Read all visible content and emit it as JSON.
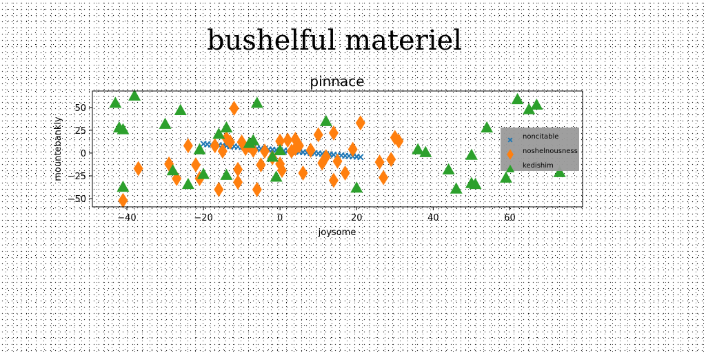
{
  "figure": {
    "suptitle": "bushelful materiel"
  },
  "chart_data": {
    "type": "scatter",
    "title": "pinnace",
    "xlabel": "joysome",
    "ylabel": "mountebankly",
    "xlim": [
      -49,
      79
    ],
    "ylim": [
      -59,
      68
    ],
    "xticks": [
      -40,
      -20,
      0,
      20,
      40,
      60
    ],
    "yticks": [
      -50,
      -25,
      0,
      25,
      50
    ],
    "tick_labels_x": [
      "−40",
      "−20",
      "0",
      "20",
      "40",
      "60"
    ],
    "tick_labels_y": [
      "−50",
      "−25",
      "0",
      "25",
      "50"
    ],
    "grid": false,
    "legend": {
      "placement": "right",
      "background": "#9a9a9a"
    },
    "series": [
      {
        "name": "noncitable",
        "marker": "x",
        "color": "#1f77b4",
        "points": [
          [
            -20,
            10
          ],
          [
            -19,
            9.6
          ],
          [
            -18,
            9.3
          ],
          [
            -17,
            8.9
          ],
          [
            -16,
            8.6
          ],
          [
            -15,
            8.2
          ],
          [
            -14,
            7.9
          ],
          [
            -13,
            7.5
          ],
          [
            -12,
            7.2
          ],
          [
            -11,
            6.8
          ],
          [
            -10,
            6.5
          ],
          [
            -9,
            6.1
          ],
          [
            -8,
            5.8
          ],
          [
            -7,
            5.4
          ],
          [
            -6,
            5.1
          ],
          [
            -5,
            4.7
          ],
          [
            -4,
            4.4
          ],
          [
            -3,
            4.0
          ],
          [
            -2,
            3.7
          ],
          [
            -1,
            3.3
          ],
          [
            0,
            3.0
          ],
          [
            1,
            2.6
          ],
          [
            2,
            2.3
          ],
          [
            3,
            1.9
          ],
          [
            4,
            1.6
          ],
          [
            5,
            1.2
          ],
          [
            6,
            0.9
          ],
          [
            7,
            0.5
          ],
          [
            8,
            0.2
          ],
          [
            9,
            -0.2
          ],
          [
            10,
            -0.5
          ],
          [
            11,
            -0.9
          ],
          [
            12,
            -1.2
          ],
          [
            13,
            -1.6
          ],
          [
            14,
            -1.9
          ],
          [
            15,
            -2.3
          ],
          [
            16,
            -2.6
          ],
          [
            17,
            -3.0
          ],
          [
            18,
            -3.3
          ],
          [
            19,
            -3.7
          ],
          [
            20,
            -4.0
          ],
          [
            21,
            -4.4
          ]
        ]
      },
      {
        "name": "noshelnousness",
        "marker": "d",
        "color": "#ff7f0e",
        "points": [
          [
            -41,
            -52
          ],
          [
            -37,
            -17
          ],
          [
            -29,
            -12
          ],
          [
            -27,
            -28
          ],
          [
            -24,
            8
          ],
          [
            -22,
            -13
          ],
          [
            -21,
            -28
          ],
          [
            -17,
            8
          ],
          [
            -16,
            -40
          ],
          [
            -15,
            2
          ],
          [
            -14,
            16
          ],
          [
            -13,
            12
          ],
          [
            -12,
            49
          ],
          [
            -11,
            -18
          ],
          [
            -11,
            -32
          ],
          [
            -10,
            12
          ],
          [
            -9,
            5
          ],
          [
            -8,
            8
          ],
          [
            -7,
            3
          ],
          [
            -6,
            -40
          ],
          [
            -5,
            -13
          ],
          [
            -4,
            2
          ],
          [
            -2,
            -5
          ],
          [
            0,
            13
          ],
          [
            0,
            -12
          ],
          [
            0.5,
            -19
          ],
          [
            2,
            14
          ],
          [
            3,
            2
          ],
          [
            4,
            5
          ],
          [
            4,
            15
          ],
          [
            5,
            8
          ],
          [
            6,
            -22
          ],
          [
            8,
            3
          ],
          [
            10,
            20
          ],
          [
            11,
            -11
          ],
          [
            12,
            -4
          ],
          [
            14,
            22
          ],
          [
            14,
            -30
          ],
          [
            15,
            -9
          ],
          [
            17,
            -22
          ],
          [
            19,
            4
          ],
          [
            21,
            33
          ],
          [
            26,
            -10
          ],
          [
            27,
            -27
          ],
          [
            29,
            -7
          ],
          [
            30,
            17
          ],
          [
            31,
            13
          ]
        ]
      },
      {
        "name": "kedishim",
        "marker": "^",
        "color": "#2ca02c",
        "points": [
          [
            -43,
            55
          ],
          [
            -42,
            28
          ],
          [
            -41,
            26
          ],
          [
            -41,
            -37
          ],
          [
            -38,
            63
          ],
          [
            -30,
            32
          ],
          [
            -28,
            -19
          ],
          [
            -26,
            47
          ],
          [
            -24,
            -34
          ],
          [
            -21,
            4
          ],
          [
            -20,
            -23
          ],
          [
            -16,
            21
          ],
          [
            -14,
            28
          ],
          [
            -14,
            -24
          ],
          [
            -8,
            11
          ],
          [
            -7,
            14
          ],
          [
            -6,
            55
          ],
          [
            -2,
            -4
          ],
          [
            -1,
            -26
          ],
          [
            0,
            3
          ],
          [
            12,
            35
          ],
          [
            20,
            -38
          ],
          [
            36,
            4
          ],
          [
            38,
            1
          ],
          [
            44,
            -18
          ],
          [
            46,
            -39
          ],
          [
            50,
            -2
          ],
          [
            50,
            -33
          ],
          [
            51,
            -34
          ],
          [
            54,
            28
          ],
          [
            59,
            -27
          ],
          [
            62,
            59
          ],
          [
            65,
            48
          ],
          [
            67,
            53
          ],
          [
            73,
            -21
          ]
        ]
      }
    ]
  }
}
